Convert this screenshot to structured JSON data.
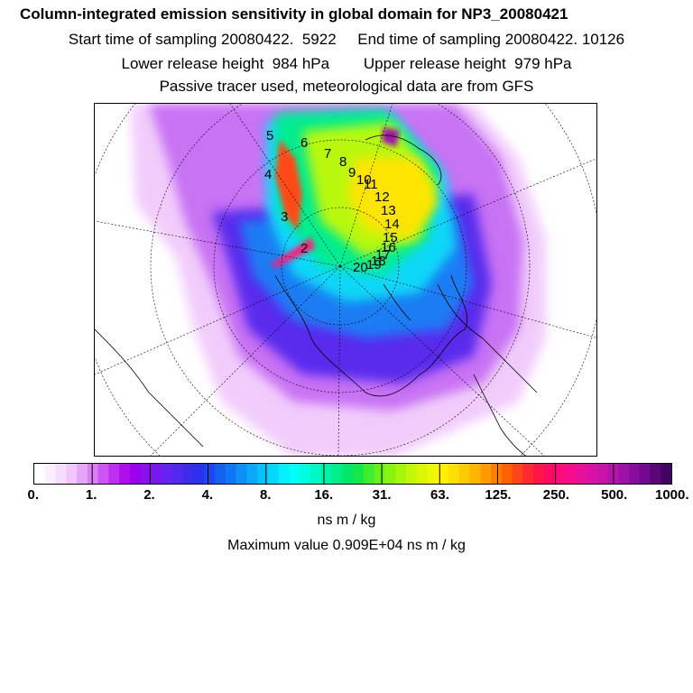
{
  "title": "Column-integrated emission sensitivity in global domain for NP3_20080421",
  "line1": "Start time of sampling 20080422.  5922     End time of sampling 20080422. 10126",
  "line2": "Lower release height  984 hPa        Upper release height  979 hPa",
  "line3": "Passive tracer used, meteorological data are from GFS",
  "colorbar": {
    "ticks": [
      "0.",
      "1.",
      "2.",
      "4.",
      "8.",
      "16.",
      "31.",
      "63.",
      "125.",
      "250.",
      "500.",
      "1000."
    ],
    "colors": [
      "#ffffff",
      "#fbeefe",
      "#f6dcfd",
      "#f0c6fb",
      "#e6a6f8",
      "#d97ef5",
      "#cc55f3",
      "#bf2ff1",
      "#b10eef",
      "#9d00ef",
      "#8a10ee",
      "#7818ee",
      "#6622ee",
      "#5128ee",
      "#3c2cee",
      "#2a32ee",
      "#1d46f0",
      "#1560f2",
      "#0e78f4",
      "#0c90f6",
      "#0aa8f8",
      "#08c0fa",
      "#06d8fc",
      "#04f0fe",
      "#00fff4",
      "#00fde0",
      "#00f8c4",
      "#00f4a6",
      "#00ee88",
      "#00e86a",
      "#12e84a",
      "#3cee2c",
      "#66f218",
      "#88f410",
      "#a6f60a",
      "#c2f806",
      "#daf804",
      "#eef802",
      "#fff000",
      "#ffe000",
      "#ffcc00",
      "#ffb400",
      "#ff9a00",
      "#ff7e00",
      "#ff6200",
      "#ff4418",
      "#ff2a30",
      "#ff1646",
      "#ff0a62",
      "#ff0c7a",
      "#f60c8c",
      "#e8109a",
      "#d812a4",
      "#c814aa",
      "#b414ac",
      "#9e12a8",
      "#880e9e",
      "#720a90",
      "#5a0678",
      "#420460"
    ]
  },
  "unit": "ns m / kg",
  "maximum": "Maximum value  0.909E+04 ns m / kg",
  "trajectory_labels": [
    "2",
    "3",
    "4",
    "5",
    "6",
    "7",
    "8",
    "9",
    "10",
    "11",
    "12",
    "13",
    "14",
    "15",
    "16",
    "17",
    "18",
    "19",
    "20"
  ]
}
